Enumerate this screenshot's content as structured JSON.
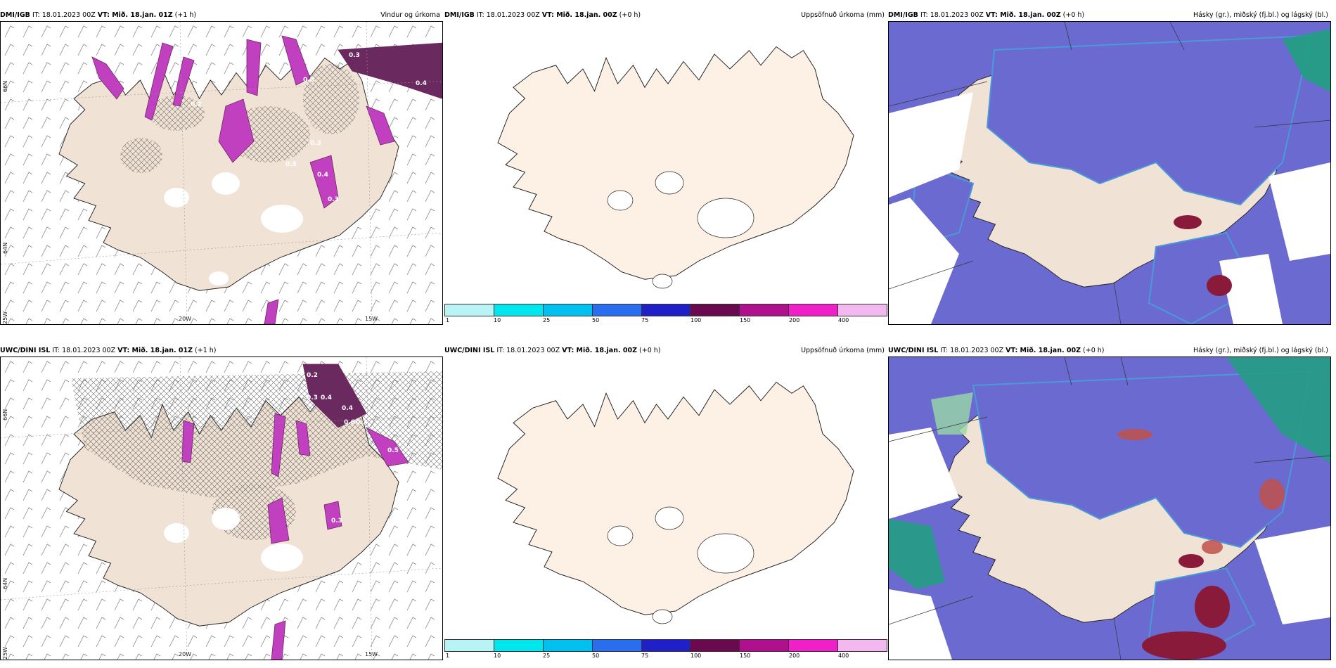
{
  "panels": [
    {
      "source": "DMI/IGB",
      "it": "IT: 18.01.2023 00Z",
      "vt": "VT: Mið. 18.jan. 01Z",
      "lead": "(+1 h)",
      "title": "Vindur og úrkoma",
      "labels": [
        "0.3",
        "0.4",
        "0.2",
        "0.8",
        "0.5",
        "0.3",
        "0.4",
        "0.3"
      ]
    },
    {
      "source": "DMI/IGB",
      "it": "IT: 18.01.2023 00Z",
      "vt": "VT: Mið. 18.jan. 00Z",
      "lead": "(+0 h)",
      "title": "Uppsöfnuð úrkoma (mm)"
    },
    {
      "source": "DMI/IGB",
      "it": "IT: 18.01.2023 00Z",
      "vt": "VT: Mið. 18.jan. 00Z",
      "lead": "(+0 h)",
      "title": "Hásky (gr.), miðský (fj.bl.) og lágský (bl.)"
    },
    {
      "source": "UWC/DINI ISL",
      "it": "IT: 18.01.2023 00Z",
      "vt": "VT: Mið. 18.jan. 01Z",
      "lead": "(+1 h)",
      "title": "",
      "labels": [
        "0.2",
        "0.3",
        "0.4",
        "0.4",
        "0.6",
        "0.7",
        "0.5",
        "0.3"
      ]
    },
    {
      "source": "UWC/DINI ISL",
      "it": "IT: 18.01.2023 00Z",
      "vt": "VT: Mið. 18.jan. 00Z",
      "lead": "(+0 h)",
      "title": "Uppsöfnuð úrkoma (mm)"
    },
    {
      "source": "UWC/DINI ISL",
      "it": "IT: 18.01.2023 00Z",
      "vt": "VT: Mið. 18.jan. 00Z",
      "lead": "(+0 h)",
      "title": "Hásky (gr.), miðský (fj.bl.) og lágský (bl.)"
    }
  ],
  "axes": {
    "lon_20w": "20W",
    "lon_15w": "15W",
    "lon_25w": "25W",
    "lat_66n": "66N",
    "lat_64n": "64N"
  },
  "colorbar": {
    "ticks": [
      "1",
      "10",
      "25",
      "50",
      "75",
      "100",
      "150",
      "200",
      "400"
    ],
    "colors": [
      "#b8f4f6",
      "#00e6ee",
      "#00c0f0",
      "#2a6ef0",
      "#2020c8",
      "#6a0850",
      "#b0108e",
      "#f020c8",
      "#f4b8f0"
    ]
  },
  "colors": {
    "land": "#f0e2d4",
    "land_rain": "#fdf1e6",
    "precip": "#c040c0",
    "precip_dark": "#6a2a60",
    "cloud_high": "#6a6ad0",
    "cloud_low": "#4a9ad8",
    "cloud_mid": "#20a080",
    "cloud_red": "#8a1a3a"
  }
}
